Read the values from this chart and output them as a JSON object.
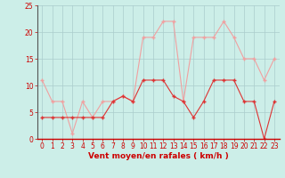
{
  "x": [
    0,
    1,
    2,
    3,
    4,
    5,
    6,
    7,
    8,
    9,
    10,
    11,
    12,
    13,
    14,
    15,
    16,
    17,
    18,
    19,
    20,
    21,
    22,
    23
  ],
  "vent_moyen": [
    4,
    4,
    4,
    4,
    4,
    4,
    4,
    7,
    8,
    7,
    11,
    11,
    11,
    8,
    7,
    4,
    7,
    11,
    11,
    11,
    7,
    7,
    0,
    7
  ],
  "rafales": [
    11,
    7,
    7,
    1,
    7,
    4,
    7,
    7,
    8,
    7,
    19,
    19,
    22,
    22,
    7,
    19,
    19,
    19,
    22,
    19,
    15,
    15,
    11,
    15
  ],
  "moyen_color": "#dd3333",
  "rafales_color": "#f0a0a0",
  "bg_color": "#cceee8",
  "grid_color": "#aacccc",
  "xlabel": "Vent moyen/en rafales ( km/h )",
  "xlabel_color": "#cc0000",
  "tick_color": "#cc0000",
  "ylim": [
    0,
    25
  ],
  "yticks": [
    0,
    5,
    10,
    15,
    20,
    25
  ],
  "xticks": [
    0,
    1,
    2,
    3,
    4,
    5,
    6,
    7,
    8,
    9,
    10,
    11,
    12,
    13,
    14,
    15,
    16,
    17,
    18,
    19,
    20,
    21,
    22,
    23
  ]
}
